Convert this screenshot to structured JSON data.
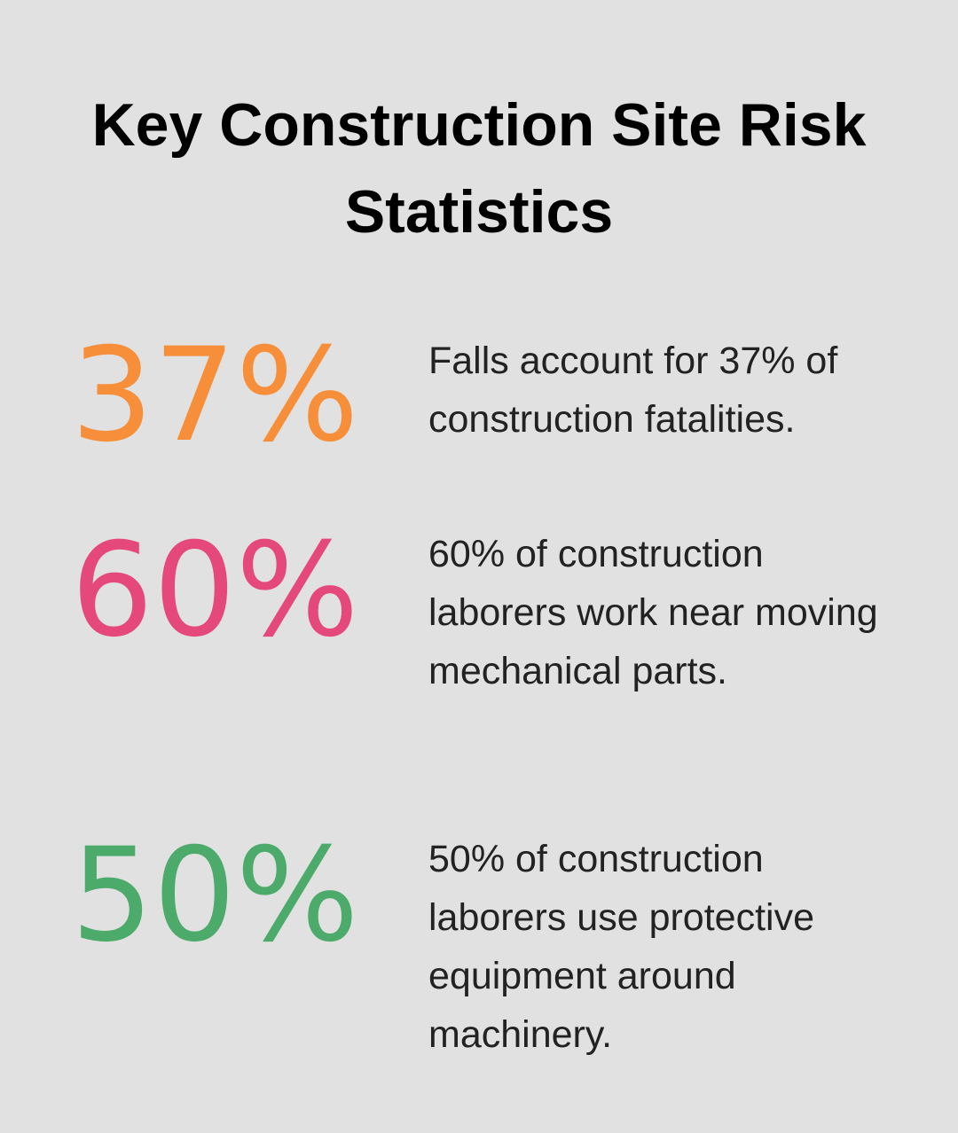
{
  "title": "Key Construction Site Risk Statistics",
  "stats": [
    {
      "value": "37%",
      "color": "#f78e3a",
      "description": "Falls account for 37% of construction fatalities."
    },
    {
      "value": "60%",
      "color": "#e5487a",
      "description": "60% of construction laborers work near moving mechanical parts."
    },
    {
      "value": "50%",
      "color": "#4caa6a",
      "description": "50% of construction laborers use protective equipment around machinery."
    }
  ]
}
